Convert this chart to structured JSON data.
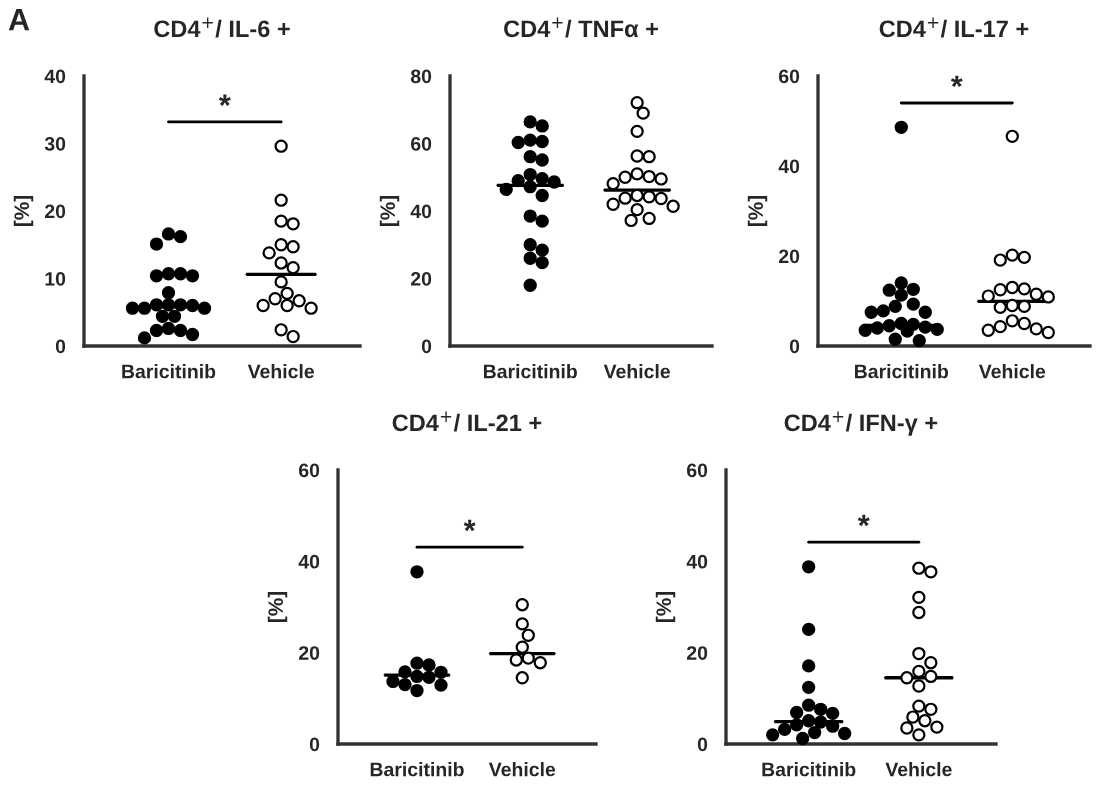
{
  "chart_data": [
    {
      "type": "scatter",
      "title": "CD4$^{+}$/ IL-6 +",
      "ylabel": "[%]",
      "categories": [
        "Baricitinib",
        "Vehicle"
      ],
      "ylim": [
        0,
        40
      ],
      "yticks": [
        0,
        10,
        20,
        30,
        40
      ],
      "grid": false,
      "legend": false,
      "marker": "circle",
      "annotations": [
        "A",
        "*"
      ],
      "series": [
        {
          "type": "box",
          "color": "#000000",
          "boxes": [
            {
              "low": 5.8,
              "q1": 5.8,
              "median": 5.8,
              "q3": 5.8,
              "high": 5.8
            },
            {
              "low": 10.6,
              "q1": 10.6,
              "median": 10.6,
              "q3": 10.6,
              "high": 10.6
            }
          ]
        },
        {
          "type": "scatter",
          "color": "#000000",
          "x": [
            "Baricitinib",
            "Baricitinib",
            "Baricitinib",
            "Baricitinib",
            "Baricitinib",
            "Baricitinib",
            "Baricitinib",
            "Baricitinib",
            "Baricitinib",
            "Baricitinib",
            "Baricitinib",
            "Baricitinib",
            "Baricitinib",
            "Baricitinib",
            "Baricitinib",
            "Baricitinib",
            "Baricitinib",
            "Baricitinib",
            "Baricitinib",
            "Baricitinib",
            "Baricitinib",
            "Baricitinib"
          ],
          "values": [
            16.6,
            16.2,
            15.1,
            10.7,
            10.7,
            10.4,
            10.4,
            7.9,
            6.1,
            6.1,
            6.1,
            6.0,
            5.6,
            5.6,
            5.6,
            4.4,
            4.4,
            2.6,
            2.3,
            2.3,
            1.7,
            1.2
          ]
        },
        {
          "type": "scatter",
          "color": "#ffffff",
          "x": [
            "Vehicle",
            "Vehicle",
            "Vehicle",
            "Vehicle",
            "Vehicle",
            "Vehicle",
            "Vehicle",
            "Vehicle",
            "Vehicle",
            "Vehicle",
            "Vehicle",
            "Vehicle",
            "Vehicle",
            "Vehicle",
            "Vehicle",
            "Vehicle",
            "Vehicle",
            "Vehicle"
          ],
          "values": [
            29.6,
            21.6,
            18.5,
            18.1,
            15.0,
            14.7,
            13.8,
            12.3,
            11.6,
            9.5,
            7.8,
            7.0,
            6.7,
            6.0,
            6.0,
            5.6,
            2.4,
            1.4
          ]
        }
      ]
    },
    {
      "type": "scatter",
      "title": "CD4$^{+}$/ TNFα +",
      "ylabel": "[%]",
      "categories": [
        "Baricitinib",
        "Vehicle"
      ],
      "ylim": [
        0,
        80
      ],
      "yticks": [
        0,
        20,
        40,
        60,
        80
      ],
      "grid": false,
      "legend": false,
      "marker": "circle",
      "series": [
        {
          "type": "box",
          "color": "#000000",
          "boxes": [
            {
              "low": 47.6,
              "q1": 47.6,
              "median": 47.6,
              "q3": 47.6,
              "high": 47.6
            },
            {
              "low": 46.2,
              "q1": 46.2,
              "median": 46.2,
              "q3": 46.2,
              "high": 46.2
            }
          ]
        },
        {
          "type": "scatter",
          "color": "#000000",
          "x": [
            "Baricitinib",
            "Baricitinib",
            "Baricitinib",
            "Baricitinib",
            "Baricitinib",
            "Baricitinib",
            "Baricitinib",
            "Baricitinib",
            "Baricitinib",
            "Baricitinib",
            "Baricitinib",
            "Baricitinib",
            "Baricitinib",
            "Baricitinib",
            "Baricitinib",
            "Baricitinib",
            "Baricitinib",
            "Baricitinib",
            "Baricitinib",
            "Baricitinib",
            "Baricitinib"
          ],
          "values": [
            66.4,
            65.2,
            61.0,
            60.6,
            60.3,
            56.1,
            55.1,
            50.8,
            49.6,
            48.6,
            47.2,
            46.4,
            44.6,
            38.5,
            37.0,
            30.0,
            28.4,
            26.0,
            24.7,
            18.0,
            49.0
          ]
        },
        {
          "type": "scatter",
          "color": "#ffffff",
          "x": [
            "Vehicle",
            "Vehicle",
            "Vehicle",
            "Vehicle",
            "Vehicle",
            "Vehicle",
            "Vehicle",
            "Vehicle",
            "Vehicle",
            "Vehicle",
            "Vehicle",
            "Vehicle",
            "Vehicle",
            "Vehicle",
            "Vehicle",
            "Vehicle",
            "Vehicle",
            "Vehicle",
            "Vehicle"
          ],
          "values": [
            72.1,
            69.0,
            63.6,
            56.3,
            56.1,
            51.0,
            50.2,
            50.0,
            49.5,
            48.1,
            44.6,
            44.2,
            43.8,
            43.7,
            42.0,
            41.4,
            40.4,
            37.8,
            37.2
          ]
        }
      ]
    },
    {
      "type": "scatter",
      "title": "CD4$^{+}$/ IL-17 +",
      "ylabel": "[%]",
      "categories": [
        "Baricitinib",
        "Vehicle"
      ],
      "ylim": [
        0,
        60
      ],
      "yticks": [
        0,
        20,
        40,
        60
      ],
      "grid": false,
      "legend": false,
      "marker": "circle",
      "annotations": [
        "*"
      ],
      "series": [
        {
          "type": "box",
          "color": "#000000",
          "boxes": [
            {
              "low": 4.6,
              "q1": 4.6,
              "median": 4.6,
              "q3": 4.6,
              "high": 4.6
            },
            {
              "low": 9.9,
              "q1": 9.9,
              "median": 9.9,
              "q3": 9.9,
              "high": 9.9
            }
          ]
        },
        {
          "type": "scatter",
          "color": "#000000",
          "x": [
            "Baricitinib",
            "Baricitinib",
            "Baricitinib",
            "Baricitinib",
            "Baricitinib",
            "Baricitinib",
            "Baricitinib",
            "Baricitinib",
            "Baricitinib",
            "Baricitinib",
            "Baricitinib",
            "Baricitinib",
            "Baricitinib",
            "Baricitinib",
            "Baricitinib",
            "Baricitinib",
            "Baricitinib",
            "Baricitinib",
            "Baricitinib",
            "Baricitinib"
          ],
          "values": [
            48.6,
            14.0,
            12.6,
            12.4,
            11.3,
            9.3,
            8.8,
            7.8,
            7.5,
            7.5,
            5.0,
            4.8,
            4.5,
            4.2,
            4.0,
            3.7,
            3.5,
            3.3,
            1.5,
            1.2
          ]
        },
        {
          "type": "scatter",
          "color": "#ffffff",
          "x": [
            "Vehicle",
            "Vehicle",
            "Vehicle",
            "Vehicle",
            "Vehicle",
            "Vehicle",
            "Vehicle",
            "Vehicle",
            "Vehicle",
            "Vehicle",
            "Vehicle",
            "Vehicle",
            "Vehicle",
            "Vehicle",
            "Vehicle",
            "Vehicle",
            "Vehicle",
            "Vehicle",
            "Vehicle"
          ],
          "values": [
            46.6,
            20.2,
            19.7,
            19.1,
            13.0,
            12.7,
            12.5,
            11.5,
            11.1,
            10.9,
            9.0,
            8.8,
            8.6,
            5.6,
            5.0,
            4.3,
            3.8,
            3.5,
            3.0
          ]
        }
      ]
    },
    {
      "type": "scatter",
      "title": "CD4$^{+}$/ IL-21 +",
      "ylabel": "[%]",
      "categories": [
        "Baricitinib",
        "Vehicle"
      ],
      "ylim": [
        0,
        60
      ],
      "yticks": [
        0,
        20,
        40,
        60
      ],
      "grid": false,
      "legend": false,
      "marker": "circle",
      "annotations": [
        "*"
      ],
      "series": [
        {
          "type": "box",
          "color": "#000000",
          "boxes": [
            {
              "low": 15.1,
              "q1": 15.1,
              "median": 15.1,
              "q3": 15.1,
              "high": 15.1
            },
            {
              "low": 19.8,
              "q1": 19.8,
              "median": 19.8,
              "q3": 19.8,
              "high": 19.8
            }
          ]
        },
        {
          "type": "scatter",
          "color": "#000000",
          "x": [
            "Baricitinib",
            "Baricitinib",
            "Baricitinib",
            "Baricitinib",
            "Baricitinib",
            "Baricitinib",
            "Baricitinib",
            "Baricitinib",
            "Baricitinib",
            "Baricitinib",
            "Baricitinib"
          ],
          "values": [
            37.7,
            17.7,
            17.3,
            15.8,
            15.7,
            14.8,
            14.6,
            13.7,
            13.0,
            12.9,
            11.7
          ]
        },
        {
          "type": "scatter",
          "color": "#ffffff",
          "x": [
            "Vehicle",
            "Vehicle",
            "Vehicle",
            "Vehicle",
            "Vehicle",
            "Vehicle",
            "Vehicle",
            "Vehicle"
          ],
          "values": [
            30.5,
            26.3,
            23.8,
            21.2,
            18.8,
            18.4,
            17.8,
            14.5
          ]
        }
      ]
    },
    {
      "type": "scatter",
      "title": "CD4$^{+}$/ IFN-γ +",
      "ylabel": "[%]",
      "categories": [
        "Baricitinib",
        "Vehicle"
      ],
      "ylim": [
        0,
        60
      ],
      "yticks": [
        0,
        20,
        40,
        60
      ],
      "grid": false,
      "legend": false,
      "marker": "circle",
      "annotations": [
        "*"
      ],
      "series": [
        {
          "type": "box",
          "color": "#000000",
          "boxes": [
            {
              "low": 4.9,
              "q1": 4.9,
              "median": 4.9,
              "q3": 4.9,
              "high": 4.9
            },
            {
              "low": 14.5,
              "q1": 14.5,
              "median": 14.5,
              "q3": 14.5,
              "high": 14.5
            }
          ]
        },
        {
          "type": "scatter",
          "color": "#000000",
          "x": [
            "Baricitinib",
            "Baricitinib",
            "Baricitinib",
            "Baricitinib",
            "Baricitinib",
            "Baricitinib",
            "Baricitinib",
            "Baricitinib",
            "Baricitinib",
            "Baricitinib",
            "Baricitinib",
            "Baricitinib",
            "Baricitinib",
            "Baricitinib",
            "Baricitinib",
            "Baricitinib",
            "Baricitinib"
          ],
          "values": [
            38.8,
            25.1,
            17.1,
            12.4,
            8.5,
            7.6,
            6.9,
            6.7,
            5.1,
            4.8,
            4.2,
            3.9,
            3.2,
            2.5,
            2.3,
            2.0,
            1.2
          ]
        },
        {
          "type": "scatter",
          "color": "#ffffff",
          "x": [
            "Vehicle",
            "Vehicle",
            "Vehicle",
            "Vehicle",
            "Vehicle",
            "Vehicle",
            "Vehicle",
            "Vehicle",
            "Vehicle",
            "Vehicle",
            "Vehicle",
            "Vehicle",
            "Vehicle",
            "Vehicle",
            "Vehicle",
            "Vehicle",
            "Vehicle"
          ],
          "values": [
            38.5,
            37.7,
            32.1,
            28.8,
            19.8,
            17.8,
            15.9,
            14.8,
            14.5,
            12.7,
            8.3,
            7.6,
            5.9,
            5.1,
            3.7,
            3.5,
            2.0
          ]
        }
      ]
    }
  ]
}
